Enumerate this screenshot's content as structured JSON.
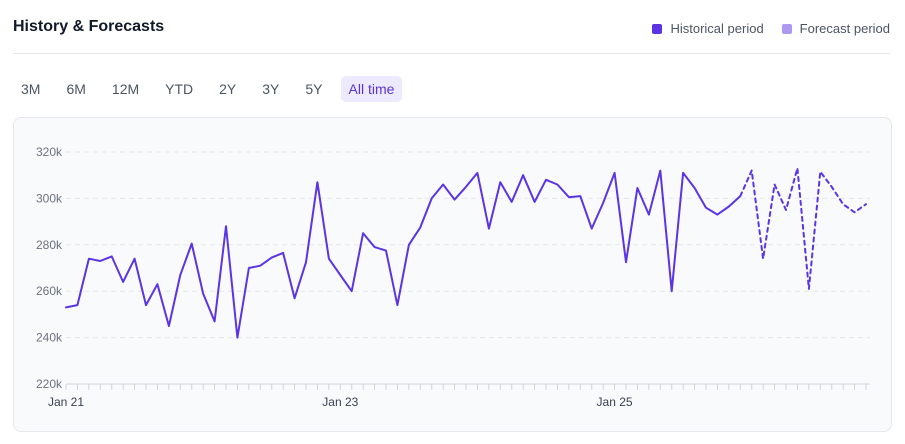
{
  "header": {
    "title": "History & Forecasts",
    "legend": [
      {
        "label": "Historical period",
        "color": "#5b34e6"
      },
      {
        "label": "Forecast period",
        "color": "#ad98f2"
      }
    ]
  },
  "tabs": [
    "3M",
    "6M",
    "12M",
    "YTD",
    "2Y",
    "3Y",
    "5Y",
    "All time"
  ],
  "active_tab": "All time",
  "chart_data": {
    "type": "line",
    "title": "",
    "xlabel": "",
    "ylabel": "",
    "ylim": [
      220000,
      320000
    ],
    "yticks": [
      220000,
      240000,
      260000,
      280000,
      300000,
      320000
    ],
    "ytick_labels": [
      "220k",
      "240k",
      "260k",
      "280k",
      "300k",
      "320k"
    ],
    "xticks": [
      {
        "label": "Jan 21",
        "value": "2021-01"
      },
      {
        "label": "Jan 23",
        "value": "2023-01"
      },
      {
        "label": "Jan 25",
        "value": "2025-01"
      }
    ],
    "grid": true,
    "legend_position": "top-right",
    "series": [
      {
        "style": "solid",
        "color": "#5b34e6",
        "x": [
          "2021-01",
          "2021-02",
          "2021-03",
          "2021-04",
          "2021-05",
          "2021-06",
          "2021-07",
          "2021-08",
          "2021-09",
          "2021-10",
          "2021-11",
          "2021-12",
          "2022-01",
          "2022-02",
          "2022-03",
          "2022-04",
          "2022-05",
          "2022-06",
          "2022-07",
          "2022-08",
          "2022-09",
          "2022-10",
          "2022-11",
          "2022-12",
          "2023-01",
          "2023-02",
          "2023-03",
          "2023-04",
          "2023-05",
          "2023-06",
          "2023-07",
          "2023-08",
          "2023-09",
          "2023-10",
          "2023-11",
          "2023-12",
          "2024-01",
          "2024-02",
          "2024-03",
          "2024-04",
          "2024-05",
          "2024-06",
          "2024-07",
          "2024-08",
          "2024-09",
          "2024-10",
          "2024-11",
          "2024-12",
          "2025-01",
          "2025-02",
          "2025-03",
          "2025-04",
          "2025-05",
          "2025-06",
          "2025-07",
          "2025-08",
          "2025-09",
          "2025-10",
          "2025-11",
          "2025-12"
        ],
        "values": [
          253000,
          254000,
          274000,
          273000,
          275000,
          264000,
          274000,
          254000,
          263000,
          245000,
          267000,
          280500,
          259000,
          247000,
          288000,
          240000,
          270000,
          271000,
          274500,
          276500,
          257000,
          272500,
          307000,
          274000,
          267000,
          260000,
          285000,
          279000,
          277500,
          254000,
          280000,
          287500,
          300000,
          306000,
          299500,
          305000,
          311000,
          287000,
          307000,
          298500,
          310000,
          298500,
          308000,
          306000,
          300500,
          301000,
          287000,
          298000,
          311000,
          272500,
          304500,
          293000,
          312000,
          260000,
          311000,
          304500,
          296000,
          293000,
          296500,
          301000
        ]
      },
      {
        "style": "dashed",
        "color": "#5b34e6",
        "x": [
          "2025-12",
          "2026-01",
          "2026-02",
          "2026-03",
          "2026-04",
          "2026-05",
          "2026-06",
          "2026-07",
          "2026-08",
          "2026-09",
          "2026-10",
          "2026-11"
        ],
        "values": [
          301000,
          312000,
          274000,
          306000,
          295000,
          313000,
          261000,
          311500,
          305000,
          297500,
          294000,
          297500
        ]
      }
    ]
  }
}
